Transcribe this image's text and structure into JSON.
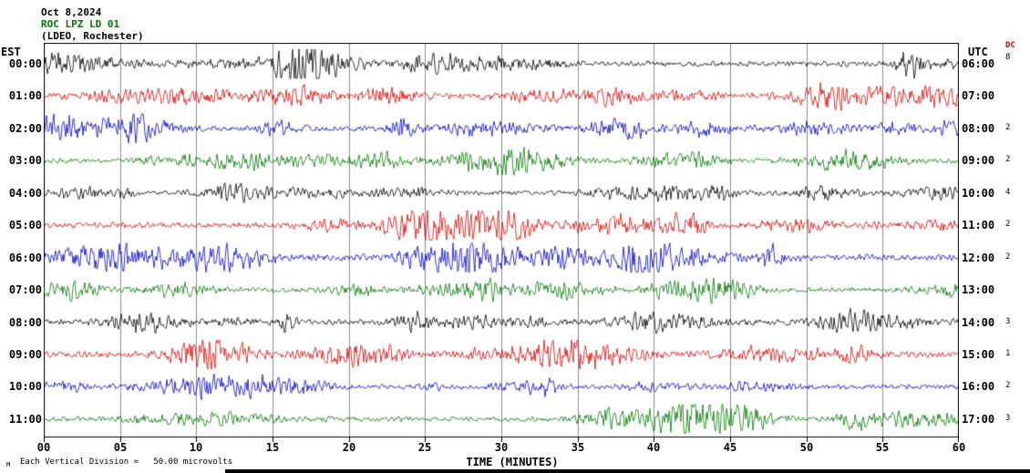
{
  "title": {
    "date": "Oct 8,2024",
    "station": "ROC LPZ LD 01",
    "location": "(LDEO, Rochester)"
  },
  "axes": {
    "left_tz": "EST",
    "right_tz": "UTC",
    "dc_label": "DC",
    "x_title": "TIME (MINUTES)",
    "x_ticks": [
      "00",
      "05",
      "10",
      "15",
      "20",
      "25",
      "30",
      "35",
      "40",
      "45",
      "50",
      "55",
      "60"
    ]
  },
  "footer": {
    "mark": "M",
    "scale_note": "Each Vertical Division =   50.00 microvolts"
  },
  "colors": {
    "black": "#000000",
    "red": "#dd0000",
    "blue": "#0000cc",
    "green": "#007700",
    "grid": "#8c8c8c"
  },
  "rows": [
    {
      "est": "00:00",
      "utc": "06:00",
      "color": "black",
      "amp": "8"
    },
    {
      "est": "01:00",
      "utc": "07:00",
      "color": "red",
      "amp": ""
    },
    {
      "est": "02:00",
      "utc": "08:00",
      "color": "blue",
      "amp": "2"
    },
    {
      "est": "03:00",
      "utc": "09:00",
      "color": "green",
      "amp": "2"
    },
    {
      "est": "04:00",
      "utc": "10:00",
      "color": "black",
      "amp": "4"
    },
    {
      "est": "05:00",
      "utc": "11:00",
      "color": "red",
      "amp": "2"
    },
    {
      "est": "06:00",
      "utc": "12:00",
      "color": "blue",
      "amp": "2"
    },
    {
      "est": "07:00",
      "utc": "13:00",
      "color": "green",
      "amp": ""
    },
    {
      "est": "08:00",
      "utc": "14:00",
      "color": "black",
      "amp": "3"
    },
    {
      "est": "09:00",
      "utc": "15:00",
      "color": "red",
      "amp": "1"
    },
    {
      "est": "10:00",
      "utc": "16:00",
      "color": "blue",
      "amp": "2"
    },
    {
      "est": "11:00",
      "utc": "17:00",
      "color": "green",
      "amp": "3"
    }
  ],
  "chart_data": {
    "type": "line",
    "subtype": "helicorder-seismogram",
    "title": "ROC LPZ LD 01 (LDEO, Rochester) — Oct 8,2024",
    "xlabel": "TIME (MINUTES)",
    "x_range_minutes": [
      0,
      60
    ],
    "x_tick_interval_minutes": 5,
    "grid": true,
    "amplitude_scale": "Each Vertical Division = 50.00 microvolts",
    "rows": [
      {
        "est": "00:00",
        "utc": "06:00",
        "color": "black",
        "right_value": "8"
      },
      {
        "est": "01:00",
        "utc": "07:00",
        "color": "red",
        "right_value": ""
      },
      {
        "est": "02:00",
        "utc": "08:00",
        "color": "blue",
        "right_value": "2"
      },
      {
        "est": "03:00",
        "utc": "09:00",
        "color": "green",
        "right_value": "2"
      },
      {
        "est": "04:00",
        "utc": "10:00",
        "color": "black",
        "right_value": "4"
      },
      {
        "est": "05:00",
        "utc": "11:00",
        "color": "red",
        "right_value": "2"
      },
      {
        "est": "06:00",
        "utc": "12:00",
        "color": "blue",
        "right_value": "2"
      },
      {
        "est": "07:00",
        "utc": "13:00",
        "color": "green",
        "right_value": ""
      },
      {
        "est": "08:00",
        "utc": "14:00",
        "color": "black",
        "right_value": "3"
      },
      {
        "est": "09:00",
        "utc": "15:00",
        "color": "red",
        "right_value": "1"
      },
      {
        "est": "10:00",
        "utc": "16:00",
        "color": "blue",
        "right_value": "2"
      },
      {
        "est": "11:00",
        "utc": "17:00",
        "color": "green",
        "right_value": "3"
      }
    ],
    "description": "12 hourly continuous seismic traces (EST 00:00–11:00 left axis, UTC 06:00–17:00 right axis), trace colors cycling black/red/blue/green; waveforms are dense background noise with intermittent higher-amplitude bursts across the full 60-minute width."
  }
}
